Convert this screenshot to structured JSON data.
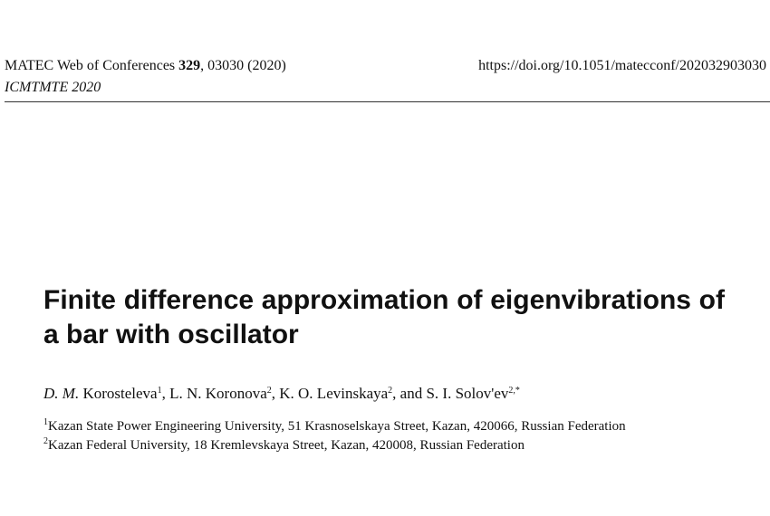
{
  "header": {
    "journal": "MATEC Web of Conferences",
    "volume": "329",
    "citation": ", 03030 (2020)",
    "doi": "https://doi.org/10.1051/matecconf/202032903030",
    "conference": "ICMTMTE 2020"
  },
  "title": "Finite difference approximation of eigenvibrations of a bar with oscillator",
  "authors": [
    {
      "lead": "",
      "initials": "D. M.",
      "name": " Korosteleva",
      "sup": "1"
    },
    {
      "lead": ", ",
      "initials": "",
      "name": "L. N. Koronova",
      "sup": "2"
    },
    {
      "lead": ", ",
      "initials": "",
      "name": "K. O. Levinskaya",
      "sup": "2"
    },
    {
      "lead": ", and ",
      "initials": "",
      "name": "S. I. Solov'ev",
      "sup": "2,*"
    }
  ],
  "affiliations": [
    {
      "sup": "1",
      "text": "Kazan State Power Engineering University, 51 Krasnoselskaya Street, Kazan, 420066, Russian Federation"
    },
    {
      "sup": "2",
      "text": "Kazan Federal University, 18 Kremlevskaya Street, Kazan, 420008, Russian Federation"
    }
  ]
}
